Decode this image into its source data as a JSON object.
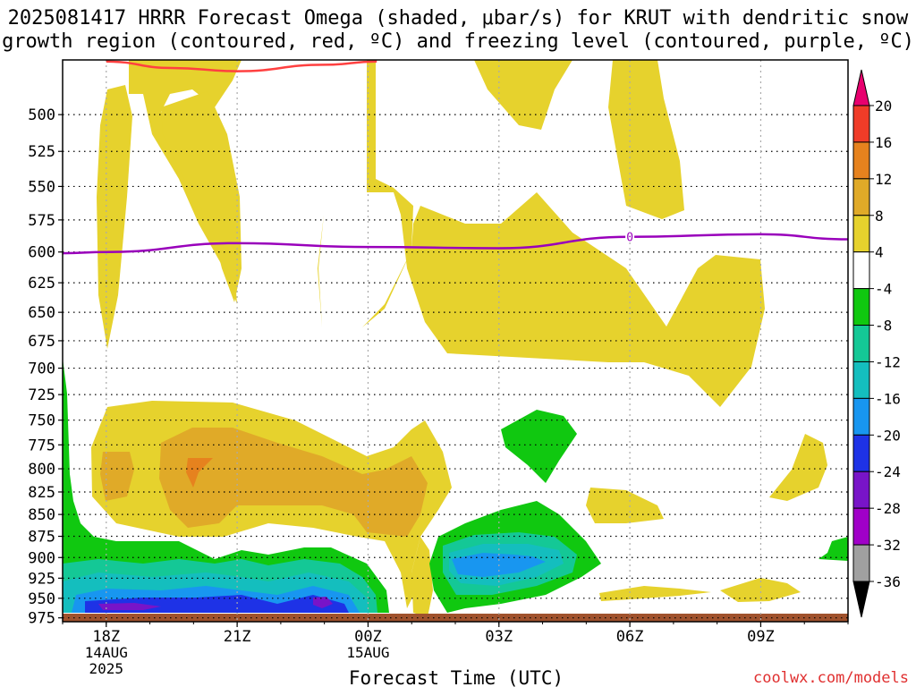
{
  "title": {
    "line1": "2025081417 HRRR Forecast Omega (shaded, μbar/s) for KRUT with dendritic snow",
    "line2": "growth region (contoured, red, ºC) and freezing level (contoured, purple, ºC)"
  },
  "chart_data": {
    "type": "time-height cross section (filled contour)",
    "xlabel": "Forecast Time (UTC)",
    "x_ticks": [
      {
        "label": "18Z",
        "sub": [
          "14AUG",
          "2025"
        ],
        "hours": 0
      },
      {
        "label": "21Z",
        "sub": [],
        "hours": 3
      },
      {
        "label": "00Z",
        "sub": [
          "15AUG"
        ],
        "hours": 6
      },
      {
        "label": "03Z",
        "sub": [],
        "hours": 9
      },
      {
        "label": "06Z",
        "sub": [],
        "hours": 12
      },
      {
        "label": "09Z",
        "sub": [],
        "hours": 15
      }
    ],
    "xlim_hours": [
      -1,
      17
    ],
    "y_ticks": [
      500,
      525,
      550,
      575,
      600,
      625,
      650,
      675,
      700,
      725,
      750,
      775,
      800,
      825,
      850,
      875,
      900,
      925,
      950,
      975
    ],
    "ylim": [
      465,
      980
    ],
    "y_scale": "log-pressure (hPa, increasing downward)",
    "grid": true,
    "colorbar": {
      "labels": [
        "20",
        "16",
        "12",
        "8",
        "4",
        "-4",
        "-8",
        "-12",
        "-16",
        "-20",
        "-24",
        "-28",
        "-32",
        "-36"
      ],
      "colors": [
        "#e8006e",
        "#f03c28",
        "#e6821e",
        "#e0aa28",
        "#e6d22d",
        "#ffffff",
        "#10c810",
        "#14c896",
        "#14bebe",
        "#1896f0",
        "#1e32e6",
        "#7814c8",
        "#a000c8",
        "#a0a0a0",
        "#000000"
      ]
    },
    "contours": {
      "freezing_level": {
        "color": "#9900bb",
        "label": "0",
        "points": [
          [
            -1,
            601
          ],
          [
            0,
            600
          ],
          [
            3,
            593
          ],
          [
            6,
            596
          ],
          [
            9,
            597
          ],
          [
            12,
            588
          ],
          [
            15,
            586
          ],
          [
            17,
            590
          ]
        ]
      },
      "dendritic_growth": {
        "color": "#ff4040",
        "points": [
          [
            0,
            466
          ],
          [
            1.5,
            470
          ],
          [
            3,
            472
          ],
          [
            5,
            468
          ],
          [
            6.2,
            466
          ]
        ]
      }
    },
    "ground_color": "#a0522d",
    "omega_regions": [
      {
        "level": "4 to 8",
        "color": "#e6d22d",
        "extent": "upper level ascent columns 500-700 hPa and near 800-900 hPa"
      },
      {
        "level": "8 to 12",
        "color": "#e0aa28",
        "extent": "800-860 hPa, 18Z-01Z"
      },
      {
        "level": "12 to 16",
        "color": "#e6821e",
        "extent": "near 810 hPa at 20Z"
      },
      {
        "level": "-4 to -8",
        "color": "#10c810",
        "extent": "low levels 880-975 hPa"
      },
      {
        "level": "-8 to -20",
        "color": "#14bebe",
        "extent": "900-960 hPa"
      },
      {
        "level": "-20 to -28",
        "color": "#7814c8",
        "extent": "near 960 hPa"
      }
    ]
  },
  "watermark": "coolwx.com/models"
}
